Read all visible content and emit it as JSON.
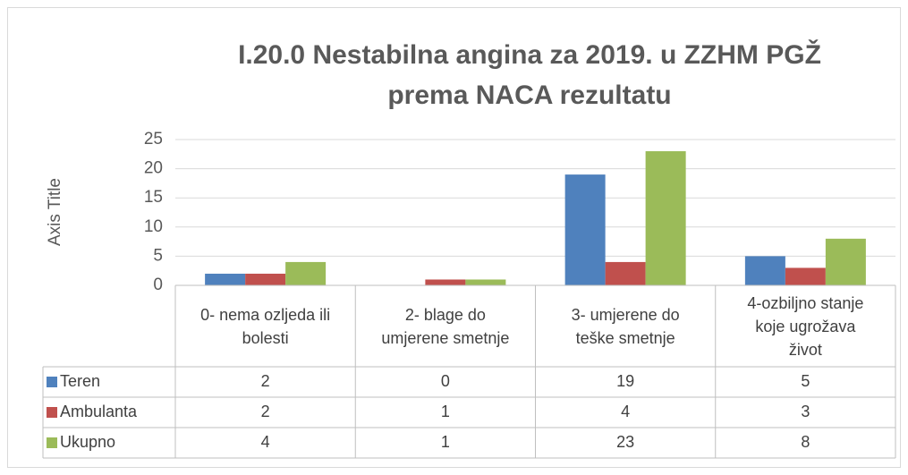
{
  "chart_data": {
    "type": "bar",
    "title": [
      "I.20.0 Nestabilna angina za 2019. u ZZHM PGŽ",
      "prema NACA rezultatu"
    ],
    "y_label": "Axis Title",
    "categories": [
      "0- nema ozljeda ili bolesti",
      "2- blage do umjerene smetnje",
      "3- umjerene do teške smetnje",
      "4-ozbiljno stanje koje ugrožava život"
    ],
    "series": [
      {
        "name": "Teren",
        "color": "#4f81bd",
        "values": [
          2,
          0,
          19,
          5
        ]
      },
      {
        "name": "Ambulanta",
        "color": "#c0504d",
        "values": [
          2,
          1,
          4,
          3
        ]
      },
      {
        "name": "Ukupno",
        "color": "#9bbb59",
        "values": [
          4,
          1,
          23,
          8
        ]
      }
    ],
    "ylim": [
      0,
      25
    ],
    "yticks": [
      0,
      5,
      10,
      15,
      20,
      25
    ],
    "grid": true,
    "data_table": true
  }
}
